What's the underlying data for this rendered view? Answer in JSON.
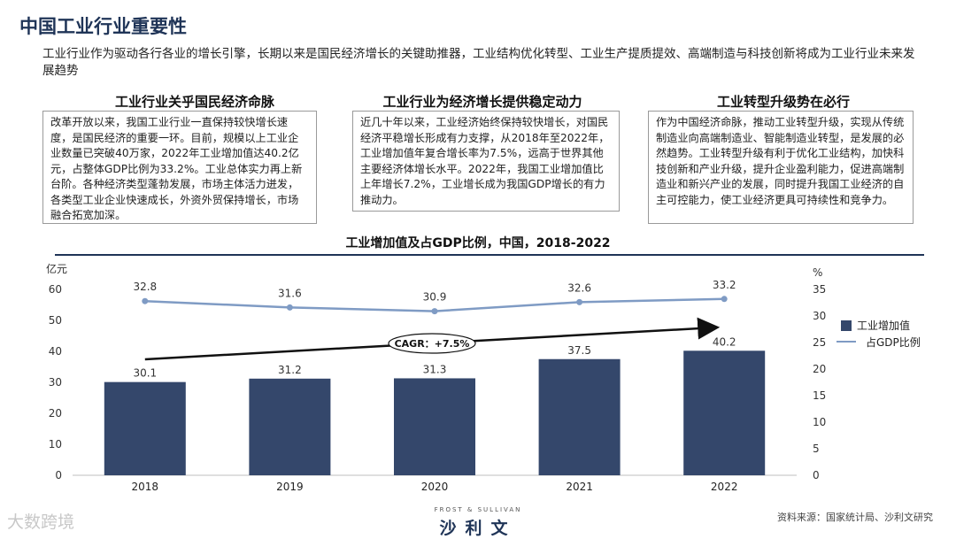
{
  "page": {
    "title": "中国工业行业重要性",
    "intro": "工业行业作为驱动各行各业的增长引擎，长期以来是国民经济增长的关键助推器，工业结构优化转型、工业生产提质提效、高端制造与科技创新将成为工业行业未来发展趋势"
  },
  "columns": [
    {
      "heading": "工业行业关乎国民经济命脉",
      "body": "改革开放以来，我国工业行业一直保持较快增长速度，是国民经济的重要一环。目前，规模以上工业企业数量已突破40万家，2022年工业增加值达40.2亿元，占整体GDP比例为33.2%。工业总体实力再上新台阶。各种经济类型蓬勃发展，市场主体活力迸发，各类型工业企业快速成长，外资外贸保持增长，市场融合拓宽加深。"
    },
    {
      "heading": "工业行业为经济增长提供稳定动力",
      "body": "近几十年以来，工业经济始终保持较快增长，对国民经济平稳增长形成有力支撑，从2018年至2022年，工业增加值年复合增长率为7.5%，远高于世界其他主要经济体增长水平。2022年，我国工业增加值比上年增长7.2%，工业增长成为我国GDP增长的有力推动力。"
    },
    {
      "heading": "工业转型升级势在必行",
      "body": "作为中国经济命脉，推动工业转型升级，实现从传统制造业向高端制造业、智能制造业转型，是发展的必然趋势。工业转型升级有利于优化工业结构，加快科技创新和产业升级，提升企业盈利能力，促进高端制造业和新兴产业的发展，同时提升我国工业经济的自主可控能力，使工业经济更具可持续性和竞争力。"
    }
  ],
  "chart_data": {
    "type": "bar+line",
    "title": "工业增加值及占GDP比例，中国，2018-2022",
    "categories": [
      "2018",
      "2019",
      "2020",
      "2021",
      "2022"
    ],
    "series": [
      {
        "name": "工业增加值",
        "type": "bar",
        "axis": "left",
        "values": [
          30.1,
          31.2,
          31.3,
          37.5,
          40.2
        ],
        "color": "#34476b"
      },
      {
        "name": "占GDP比例",
        "type": "line",
        "axis": "right",
        "values": [
          32.8,
          31.6,
          30.9,
          32.6,
          33.2
        ],
        "color": "#7f9bc4"
      }
    ],
    "y_left": {
      "unit": "亿元",
      "ylim": [
        0,
        60
      ],
      "ticks": [
        0,
        10,
        20,
        30,
        40,
        50,
        60
      ]
    },
    "y_right": {
      "unit": "%",
      "ylim": [
        0,
        35
      ],
      "ticks": [
        0,
        5,
        10,
        15,
        20,
        25,
        30,
        35
      ]
    },
    "annotation": "CAGR：+7.5%",
    "legend_position": "right",
    "grid": false
  },
  "footer": {
    "watermark": "大数跨境",
    "brand_small": "FROST & SULLIVAN",
    "brand": "沙利文",
    "source": "资料来源：国家统计局、沙利文研究"
  }
}
